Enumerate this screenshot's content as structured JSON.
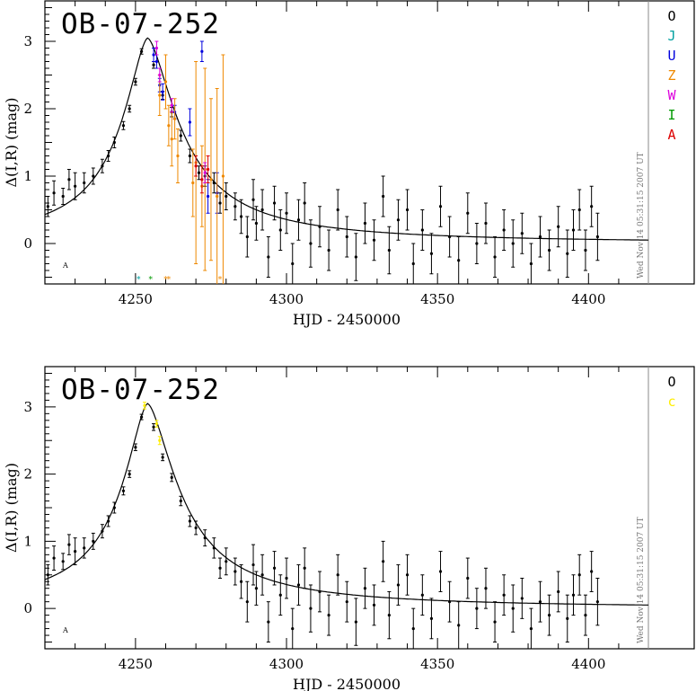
{
  "chart_data": [
    {
      "type": "scatter",
      "title": "OB-07-252",
      "xlabel": "HJD - 2450000",
      "ylabel": "Δ(I,R) (mag)",
      "xlim": [
        4220,
        4435
      ],
      "ylim": [
        -0.6,
        3.6
      ],
      "xticks": [
        4250,
        4300,
        4350,
        4400
      ],
      "yticks": [
        0,
        1,
        2,
        3
      ],
      "stamp": "Wed Nov 14 05:31:15 2007 UT",
      "corner_mark": "A",
      "legend": [
        {
          "label": "O",
          "color": "#000000"
        },
        {
          "label": "J",
          "color": "#00a0a0"
        },
        {
          "label": "U",
          "color": "#0000dd"
        },
        {
          "label": "Z",
          "color": "#ee8800"
        },
        {
          "label": "W",
          "color": "#dd00dd"
        },
        {
          "label": "I",
          "color": "#009900"
        },
        {
          "label": "A",
          "color": "#dd0000"
        }
      ],
      "model": {
        "t0": 4254,
        "peak": 3.05,
        "baseline": 0.0
      },
      "series": [
        {
          "name": "O",
          "color": "#000000",
          "points": [
            [
              4221,
              0.55,
              0.15
            ],
            [
              4223,
              0.75,
              0.18
            ],
            [
              4226,
              0.7,
              0.12
            ],
            [
              4228,
              0.95,
              0.15
            ],
            [
              4230,
              0.85,
              0.2
            ],
            [
              4233,
              0.9,
              0.15
            ],
            [
              4236,
              1.0,
              0.12
            ],
            [
              4239,
              1.15,
              0.1
            ],
            [
              4241,
              1.3,
              0.08
            ],
            [
              4243,
              1.5,
              0.08
            ],
            [
              4246,
              1.75,
              0.06
            ],
            [
              4248,
              2.0,
              0.05
            ],
            [
              4250,
              2.4,
              0.05
            ],
            [
              4252,
              2.85,
              0.04
            ],
            [
              4256,
              2.65,
              0.05
            ],
            [
              4259,
              2.2,
              0.06
            ],
            [
              4262,
              1.95,
              0.07
            ],
            [
              4265,
              1.6,
              0.08
            ],
            [
              4268,
              1.3,
              0.1
            ],
            [
              4271,
              1.05,
              0.1
            ],
            [
              4273,
              1.0,
              0.15
            ],
            [
              4276,
              0.9,
              0.15
            ],
            [
              4278,
              0.6,
              0.15
            ],
            [
              4280,
              0.7,
              0.2
            ],
            [
              4283,
              0.55,
              0.2
            ],
            [
              4285,
              0.4,
              0.25
            ],
            [
              4287,
              0.1,
              0.3
            ],
            [
              4289,
              0.65,
              0.3
            ],
            [
              4290,
              0.3,
              0.25
            ],
            [
              4292,
              0.5,
              0.3
            ],
            [
              4294,
              -0.2,
              0.3
            ],
            [
              4296,
              0.6,
              0.25
            ],
            [
              4298,
              0.2,
              0.3
            ],
            [
              4300,
              0.45,
              0.3
            ],
            [
              4302,
              -0.3,
              0.3
            ],
            [
              4304,
              0.35,
              0.3
            ],
            [
              4306,
              0.6,
              0.3
            ],
            [
              4308,
              0.0,
              0.35
            ],
            [
              4311,
              0.25,
              0.3
            ],
            [
              4314,
              -0.1,
              0.3
            ],
            [
              4317,
              0.5,
              0.3
            ],
            [
              4320,
              0.1,
              0.3
            ],
            [
              4323,
              -0.2,
              0.35
            ],
            [
              4326,
              0.3,
              0.3
            ],
            [
              4329,
              0.05,
              0.3
            ],
            [
              4332,
              0.7,
              0.3
            ],
            [
              4334,
              -0.1,
              0.35
            ],
            [
              4337,
              0.35,
              0.3
            ],
            [
              4340,
              0.5,
              0.3
            ],
            [
              4342,
              -0.3,
              0.3
            ],
            [
              4345,
              0.2,
              0.3
            ],
            [
              4348,
              -0.15,
              0.3
            ],
            [
              4351,
              0.55,
              0.3
            ],
            [
              4354,
              0.1,
              0.3
            ],
            [
              4357,
              -0.25,
              0.35
            ],
            [
              4360,
              0.45,
              0.3
            ],
            [
              4363,
              0.0,
              0.3
            ],
            [
              4366,
              0.3,
              0.3
            ],
            [
              4369,
              -0.2,
              0.3
            ],
            [
              4372,
              0.2,
              0.3
            ],
            [
              4375,
              0.0,
              0.35
            ],
            [
              4378,
              0.15,
              0.3
            ],
            [
              4381,
              -0.3,
              0.3
            ],
            [
              4384,
              0.1,
              0.3
            ],
            [
              4387,
              -0.1,
              0.3
            ],
            [
              4390,
              0.25,
              0.3
            ],
            [
              4393,
              -0.15,
              0.35
            ],
            [
              4395,
              0.2,
              0.3
            ],
            [
              4397,
              0.5,
              0.3
            ],
            [
              4399,
              -0.1,
              0.3
            ],
            [
              4401,
              0.55,
              0.3
            ],
            [
              4403,
              0.1,
              0.35
            ]
          ]
        },
        {
          "name": "U",
          "color": "#0000dd",
          "points": [
            [
              4256,
              2.8,
              0.1
            ],
            [
              4257,
              2.7,
              0.1
            ],
            [
              4258,
              2.35,
              0.1
            ],
            [
              4259,
              2.25,
              0.12
            ],
            [
              4263,
              1.95,
              0.1
            ],
            [
              4268,
              1.8,
              0.2
            ],
            [
              4272,
              2.85,
              0.15
            ],
            [
              4274,
              0.7,
              0.25
            ],
            [
              4277,
              0.75,
              0.3
            ]
          ]
        },
        {
          "name": "Z",
          "color": "#ee8800",
          "points": [
            [
              4258,
              2.2,
              0.3
            ],
            [
              4260,
              2.4,
              0.4
            ],
            [
              4261,
              1.75,
              0.3
            ],
            [
              4262,
              1.55,
              0.4
            ],
            [
              4263,
              1.85,
              0.3
            ],
            [
              4264,
              1.3,
              0.4
            ],
            [
              4269,
              0.9,
              0.5
            ],
            [
              4270,
              1.2,
              1.5
            ],
            [
              4272,
              0.85,
              0.6
            ],
            [
              4273,
              1.1,
              1.5
            ],
            [
              4275,
              0.95,
              1.2
            ],
            [
              4277,
              0.7,
              1.6
            ],
            [
              4279,
              1.0,
              1.8
            ]
          ]
        },
        {
          "name": "W",
          "color": "#dd00dd",
          "points": [
            [
              4257,
              2.9,
              0.1
            ],
            [
              4258,
              2.5,
              0.1
            ],
            [
              4262,
              2.05,
              0.1
            ],
            [
              4273,
              1.05,
              0.15
            ]
          ]
        },
        {
          "name": "A",
          "color": "#dd0000",
          "points": [
            [
              4270,
              1.15,
              0.15
            ],
            [
              4272,
              0.95,
              0.2
            ],
            [
              4274,
              1.1,
              0.2
            ]
          ]
        }
      ],
      "band_markers": [
        {
          "x": 4251,
          "color": "#00a0a0"
        },
        {
          "x": 4255,
          "color": "#009900"
        },
        {
          "x": 4260,
          "color": "#ee8800"
        },
        {
          "x": 4261,
          "color": "#ee8800"
        },
        {
          "x": 4278,
          "color": "#ee8800"
        }
      ]
    },
    {
      "type": "scatter",
      "title": "OB-07-252",
      "xlabel": "HJD - 2450000",
      "ylabel": "Δ(I,R) (mag)",
      "xlim": [
        4220,
        4435
      ],
      "ylim": [
        -0.6,
        3.6
      ],
      "xticks": [
        4250,
        4300,
        4350,
        4400
      ],
      "yticks": [
        0,
        1,
        2,
        3
      ],
      "stamp": "Wed Nov 14 05:31:15 2007 UT",
      "corner_mark": "A",
      "legend": [
        {
          "label": "O",
          "color": "#000000"
        },
        {
          "label": "c",
          "color": "#ffee00"
        }
      ],
      "model": {
        "t0": 4254,
        "peak": 3.05,
        "baseline": 0.0
      },
      "series": [
        {
          "name": "O",
          "color": "#000000",
          "points": [
            [
              4221,
              0.5,
              0.15
            ],
            [
              4223,
              0.75,
              0.18
            ],
            [
              4226,
              0.7,
              0.12
            ],
            [
              4228,
              0.95,
              0.15
            ],
            [
              4230,
              0.85,
              0.2
            ],
            [
              4233,
              0.9,
              0.15
            ],
            [
              4236,
              1.0,
              0.12
            ],
            [
              4239,
              1.15,
              0.1
            ],
            [
              4241,
              1.3,
              0.08
            ],
            [
              4243,
              1.5,
              0.08
            ],
            [
              4246,
              1.75,
              0.06
            ],
            [
              4248,
              2.0,
              0.05
            ],
            [
              4250,
              2.4,
              0.05
            ],
            [
              4252,
              2.85,
              0.04
            ],
            [
              4256,
              2.7,
              0.05
            ],
            [
              4259,
              2.25,
              0.05
            ],
            [
              4262,
              1.95,
              0.06
            ],
            [
              4265,
              1.6,
              0.07
            ],
            [
              4268,
              1.3,
              0.08
            ],
            [
              4270,
              1.2,
              0.1
            ],
            [
              4273,
              1.05,
              0.12
            ],
            [
              4276,
              0.9,
              0.15
            ],
            [
              4278,
              0.6,
              0.15
            ],
            [
              4280,
              0.7,
              0.2
            ],
            [
              4283,
              0.55,
              0.2
            ],
            [
              4285,
              0.4,
              0.25
            ],
            [
              4287,
              0.1,
              0.3
            ],
            [
              4289,
              0.65,
              0.3
            ],
            [
              4290,
              0.3,
              0.25
            ],
            [
              4292,
              0.5,
              0.3
            ],
            [
              4294,
              -0.2,
              0.3
            ],
            [
              4296,
              0.6,
              0.25
            ],
            [
              4298,
              0.2,
              0.3
            ],
            [
              4300,
              0.45,
              0.3
            ],
            [
              4302,
              -0.3,
              0.3
            ],
            [
              4304,
              0.35,
              0.3
            ],
            [
              4306,
              0.6,
              0.3
            ],
            [
              4308,
              0.0,
              0.35
            ],
            [
              4311,
              0.25,
              0.3
            ],
            [
              4314,
              -0.1,
              0.3
            ],
            [
              4317,
              0.5,
              0.3
            ],
            [
              4320,
              0.1,
              0.3
            ],
            [
              4323,
              -0.2,
              0.35
            ],
            [
              4326,
              0.3,
              0.3
            ],
            [
              4329,
              0.05,
              0.3
            ],
            [
              4332,
              0.7,
              0.3
            ],
            [
              4334,
              -0.1,
              0.35
            ],
            [
              4337,
              0.35,
              0.3
            ],
            [
              4340,
              0.5,
              0.3
            ],
            [
              4342,
              -0.3,
              0.3
            ],
            [
              4345,
              0.2,
              0.3
            ],
            [
              4348,
              -0.15,
              0.3
            ],
            [
              4351,
              0.55,
              0.3
            ],
            [
              4354,
              0.1,
              0.3
            ],
            [
              4357,
              -0.25,
              0.35
            ],
            [
              4360,
              0.45,
              0.3
            ],
            [
              4363,
              0.0,
              0.3
            ],
            [
              4366,
              0.3,
              0.3
            ],
            [
              4369,
              -0.2,
              0.3
            ],
            [
              4372,
              0.2,
              0.3
            ],
            [
              4375,
              0.0,
              0.35
            ],
            [
              4378,
              0.15,
              0.3
            ],
            [
              4381,
              -0.3,
              0.3
            ],
            [
              4384,
              0.1,
              0.3
            ],
            [
              4387,
              -0.1,
              0.3
            ],
            [
              4390,
              0.25,
              0.3
            ],
            [
              4393,
              -0.15,
              0.35
            ],
            [
              4395,
              0.2,
              0.3
            ],
            [
              4397,
              0.5,
              0.3
            ],
            [
              4399,
              -0.1,
              0.3
            ],
            [
              4401,
              0.55,
              0.3
            ],
            [
              4403,
              0.1,
              0.35
            ]
          ]
        },
        {
          "name": "c",
          "color": "#ffee00",
          "points": [
            [
              4253,
              3.02,
              0.05
            ],
            [
              4257,
              2.75,
              0.05
            ],
            [
              4258,
              2.5,
              0.06
            ]
          ]
        }
      ],
      "band_markers": []
    }
  ]
}
